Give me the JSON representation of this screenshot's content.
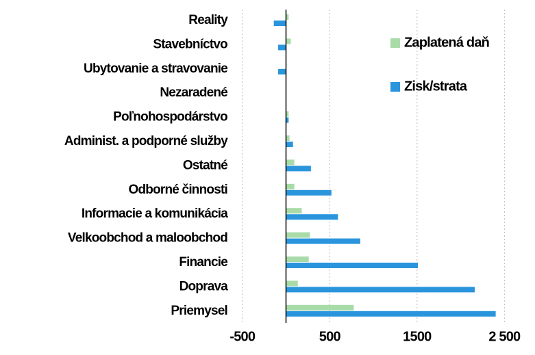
{
  "chart_data": {
    "type": "hbar",
    "categories": [
      "Reality",
      "Stavebníctvo",
      "Ubytovanie a stravovanie",
      "Nezaradené",
      "Poľnohospodárstvo",
      "Administ. a podporné služby",
      "Ostatné",
      "Odborné činnosti",
      "Informacie a komunikácia",
      "Velkoobchod a maloobchod",
      "Financie",
      "Doprava",
      "Priemysel"
    ],
    "series": [
      {
        "name": "Zaplatená daň",
        "color": "#a9dba8",
        "values": [
          30,
          55,
          5,
          0,
          30,
          40,
          95,
          95,
          180,
          275,
          260,
          135,
          775
        ]
      },
      {
        "name": "Zisk/strata",
        "color": "#2a95dc",
        "values": [
          -140,
          -90,
          -90,
          0,
          30,
          80,
          285,
          520,
          595,
          850,
          1510,
          2160,
          2400
        ]
      }
    ],
    "xlim": [
      -600,
      2850
    ],
    "xticks": [
      -500,
      500,
      1500,
      {
        "value": 2500,
        "label": "2 500"
      }
    ],
    "grid": true,
    "legend": "upper right"
  }
}
